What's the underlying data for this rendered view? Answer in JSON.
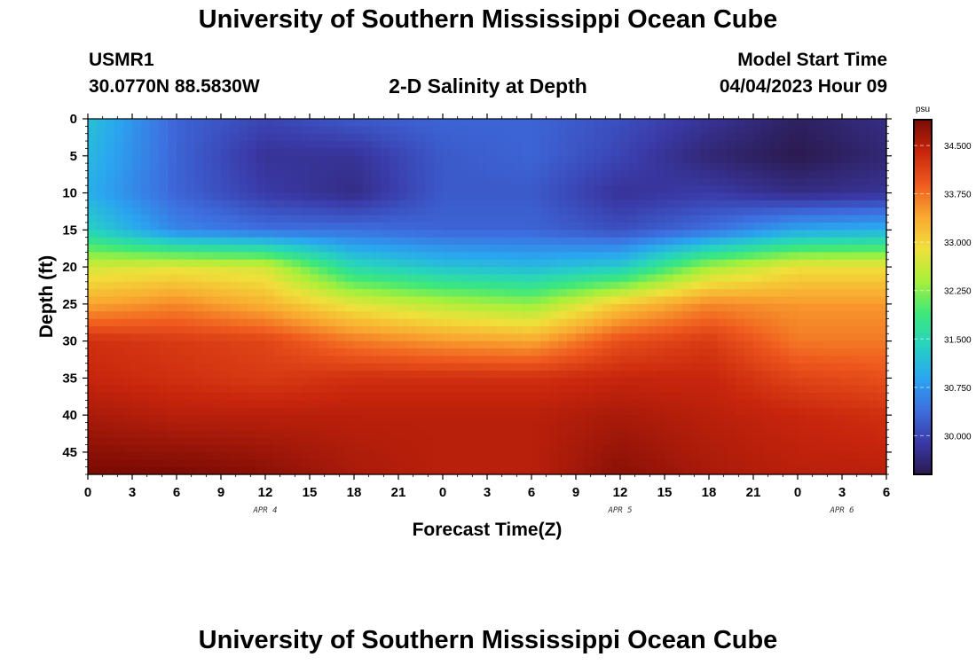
{
  "header": {
    "title": "University of Southern Mississippi Ocean Cube",
    "station_id": "USMR1",
    "station_coords": "30.0770N  88.5830W",
    "subtitle": "2-D Salinity at Depth",
    "model_start_label": "Model Start Time",
    "model_start_value": "04/04/2023 Hour 09"
  },
  "footer": {
    "title": "University of Southern Mississippi Ocean Cube"
  },
  "chart_data": {
    "type": "heatmap",
    "title": "2-D Salinity at Depth",
    "xlabel": "Forecast Time(Z)",
    "ylabel": "Depth (ft)",
    "x_hours_range": [
      0,
      54
    ],
    "x_tick_labels": [
      "0",
      "3",
      "6",
      "9",
      "12",
      "15",
      "18",
      "21",
      "0",
      "3",
      "6",
      "9",
      "12",
      "15",
      "18",
      "21",
      "0",
      "3",
      "6"
    ],
    "date_labels": [
      {
        "text": "APR 4",
        "hour": 12
      },
      {
        "text": "APR 5",
        "hour": 36
      },
      {
        "text": "APR 6",
        "hour": 51
      }
    ],
    "ylim": [
      0,
      48
    ],
    "y_ticks": [
      0,
      5,
      10,
      15,
      20,
      25,
      30,
      35,
      40,
      45
    ],
    "colorbar": {
      "units": "psu",
      "range": [
        29.4,
        34.9
      ],
      "ticks": [
        "34.500",
        "33.750",
        "33.000",
        "32.250",
        "31.500",
        "30.750",
        "30.000"
      ],
      "tick_values": [
        34.5,
        33.75,
        33.0,
        32.25,
        31.5,
        30.75,
        30.0
      ],
      "colors": [
        "#2b1a4f",
        "#3a3aa8",
        "#3d6fe0",
        "#2aa6f0",
        "#26d3c0",
        "#3ee87a",
        "#a7f03a",
        "#f0e03a",
        "#f9a830",
        "#ef5a1e",
        "#c8250c",
        "#7a0b05"
      ]
    },
    "depth_levels_ft": [
      0,
      5,
      10,
      15,
      20,
      25,
      30,
      35,
      40,
      48
    ],
    "time_hours": [
      0,
      6,
      12,
      18,
      24,
      30,
      36,
      42,
      48,
      54
    ],
    "salinity_psu": [
      [
        31.2,
        30.3,
        30.0,
        30.2,
        30.3,
        30.3,
        30.1,
        29.8,
        29.5,
        29.7
      ],
      [
        31.1,
        30.3,
        29.8,
        29.8,
        30.2,
        30.3,
        30.0,
        29.6,
        29.4,
        29.6
      ],
      [
        31.0,
        30.3,
        29.9,
        29.7,
        30.2,
        30.2,
        29.8,
        29.9,
        29.7,
        29.8
      ],
      [
        31.4,
        30.6,
        30.4,
        30.4,
        30.3,
        30.3,
        30.1,
        30.4,
        30.9,
        31.0
      ],
      [
        32.7,
        32.8,
        32.7,
        31.5,
        31.2,
        31.1,
        31.3,
        32.4,
        32.9,
        32.9
      ],
      [
        33.4,
        33.6,
        33.3,
        32.8,
        32.5,
        32.3,
        33.1,
        33.6,
        33.5,
        33.5
      ],
      [
        34.3,
        34.2,
        34.1,
        33.7,
        33.5,
        33.4,
        34.0,
        34.2,
        33.7,
        33.7
      ],
      [
        34.4,
        34.3,
        34.2,
        34.3,
        34.3,
        34.3,
        34.4,
        34.4,
        34.1,
        34.0
      ],
      [
        34.6,
        34.5,
        34.5,
        34.5,
        34.5,
        34.5,
        34.6,
        34.5,
        34.4,
        34.3
      ],
      [
        34.9,
        34.9,
        34.8,
        34.6,
        34.5,
        34.5,
        34.8,
        34.6,
        34.5,
        34.5
      ]
    ]
  }
}
